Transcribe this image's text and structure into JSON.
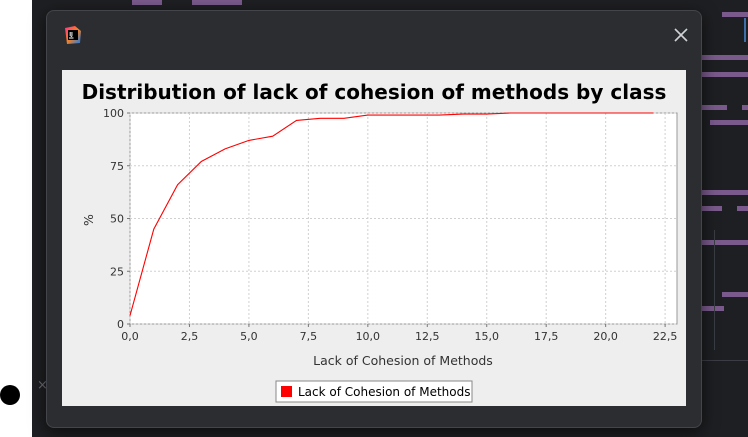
{
  "window": {
    "close_icon": "close-icon",
    "app_icon": "intellij-logo-icon"
  },
  "chart_data": {
    "type": "line",
    "title": "Distribution of lack of cohesion of methods by class",
    "xlabel": "Lack of Cohesion of Methods",
    "ylabel": "%",
    "xlim": [
      0,
      23
    ],
    "ylim": [
      0,
      100
    ],
    "x_ticks": [
      "0,0",
      "2,5",
      "5,0",
      "7,5",
      "10,0",
      "12,5",
      "15,0",
      "17,5",
      "20,0",
      "22,5"
    ],
    "x_tick_values": [
      0,
      2.5,
      5,
      7.5,
      10,
      12.5,
      15,
      17.5,
      20,
      22.5
    ],
    "y_ticks": [
      "0",
      "25",
      "50",
      "75",
      "100"
    ],
    "y_tick_values": [
      0,
      25,
      50,
      75,
      100
    ],
    "grid": true,
    "legend_position": "bottom-center",
    "series": [
      {
        "name": "Lack of Cohesion of Methods",
        "color": "#ff0000",
        "x": [
          0,
          1,
          2,
          3,
          4,
          5,
          6,
          7,
          8,
          9,
          10,
          11,
          12,
          13,
          14,
          15,
          16,
          17,
          18,
          19,
          20,
          21,
          22
        ],
        "y": [
          4,
          45,
          66,
          77,
          83,
          87,
          89,
          96.5,
          97.5,
          97.5,
          99,
          99,
          99,
          99,
          99.5,
          99.5,
          100,
          100,
          100,
          100,
          100,
          100,
          100
        ]
      }
    ]
  }
}
